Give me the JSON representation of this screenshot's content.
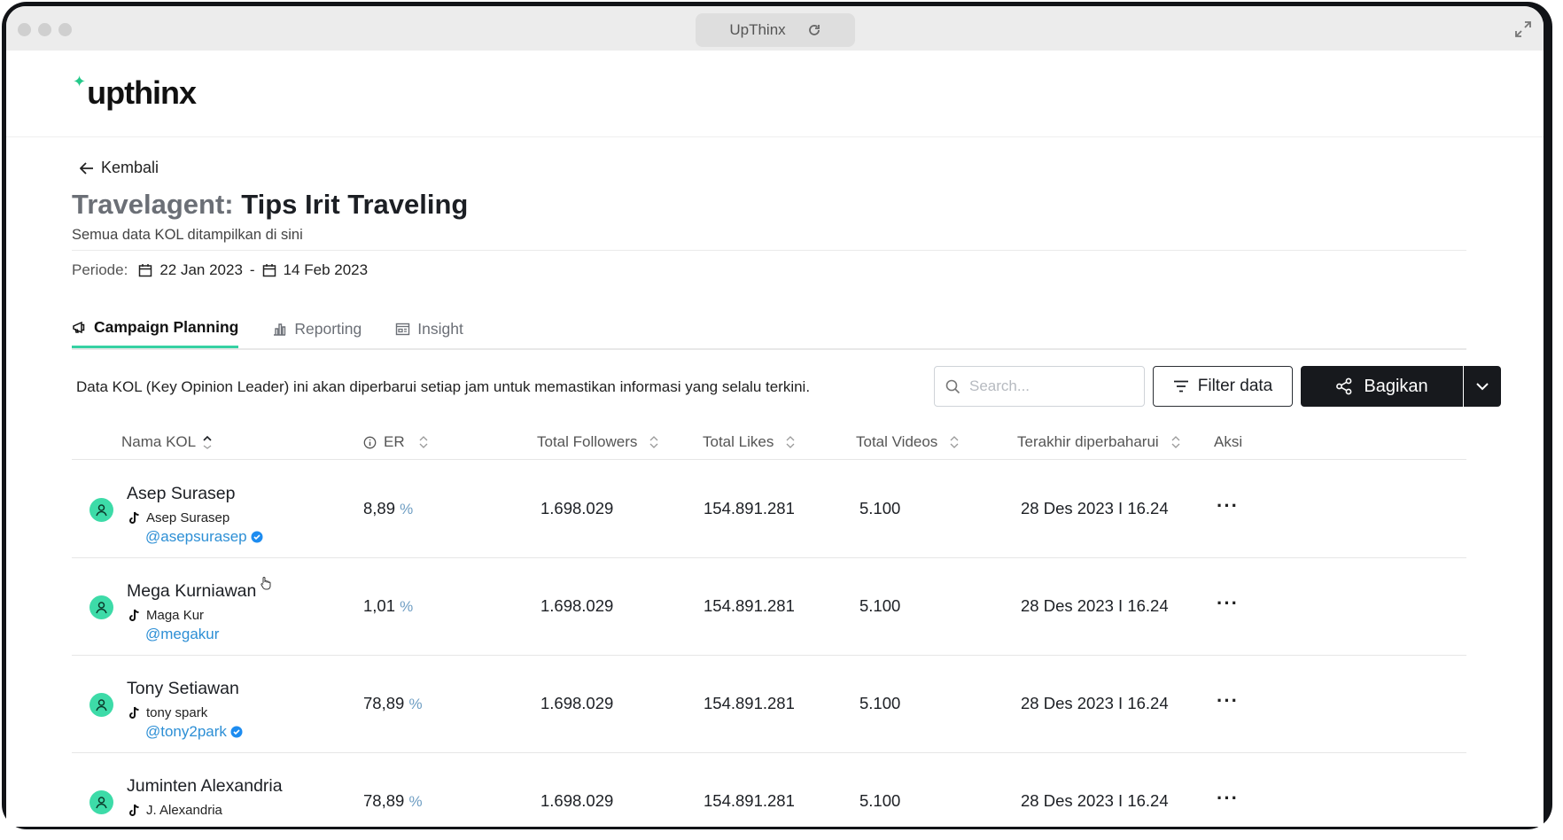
{
  "browser": {
    "url_title": "UpThinx"
  },
  "logo": {
    "text": "upthinx"
  },
  "nav": {
    "back_label": "Kembali"
  },
  "page": {
    "title_prefix": "Travelagent:",
    "title_main": "Tips Irit Traveling",
    "subtitle": "Semua data KOL ditampilkan di sini",
    "period_label": "Periode:",
    "period_start": "22 Jan 2023",
    "period_separator": "-",
    "period_end": "14 Feb 2023"
  },
  "tabs": [
    {
      "label": "Campaign Planning",
      "active": true,
      "icon": "megaphone-icon"
    },
    {
      "label": "Reporting",
      "active": false,
      "icon": "bar-chart-icon"
    },
    {
      "label": "Insight",
      "active": false,
      "icon": "report-icon"
    }
  ],
  "toolbar": {
    "info_text": "Data KOL (Key Opinion Leader) ini akan diperbarui setiap jam untuk memastikan informasi yang selalu terkini.",
    "search_placeholder": "Search...",
    "filter_label": "Filter data",
    "share_label": "Bagikan"
  },
  "table": {
    "columns": [
      "Nama KOL",
      "ER",
      "Total Followers",
      "Total Likes",
      "Total Videos",
      "Terakhir diperbaharui",
      "Aksi"
    ],
    "rows": [
      {
        "name": "Asep Surasep",
        "account": "Asep Surasep",
        "handle": "@asepsurasep",
        "verified": true,
        "er": "8,89",
        "er_unit": "%",
        "followers": "1.698.029",
        "likes": "154.891.281",
        "videos": "5.100",
        "updated": "28 Des 2023 I 16.24",
        "action": "···"
      },
      {
        "name": "Mega Kurniawan",
        "account": "Maga Kur",
        "handle": "@megakur",
        "verified": false,
        "er": "1,01",
        "er_unit": "%",
        "followers": "1.698.029",
        "likes": "154.891.281",
        "videos": "5.100",
        "updated": "28 Des 2023 I 16.24",
        "action": "···"
      },
      {
        "name": "Tony Setiawan",
        "account": "tony spark",
        "handle": "@tony2park",
        "verified": true,
        "er": "78,89",
        "er_unit": "%",
        "followers": "1.698.029",
        "likes": "154.891.281",
        "videos": "5.100",
        "updated": "28 Des 2023 I 16.24",
        "action": "···"
      },
      {
        "name": "Juminten Alexandria",
        "account": "J. Alexandria",
        "handle": "",
        "verified": false,
        "er": "78,89",
        "er_unit": "%",
        "followers": "1.698.029",
        "likes": "154.891.281",
        "videos": "5.100",
        "updated": "28 Des 2023 I 16.24",
        "action": "···"
      }
    ]
  },
  "colors": {
    "accent": "#36d1a3",
    "avatar_bg": "#3ddba8",
    "handle": "#2d8fd5",
    "dark_button": "#17191d"
  }
}
